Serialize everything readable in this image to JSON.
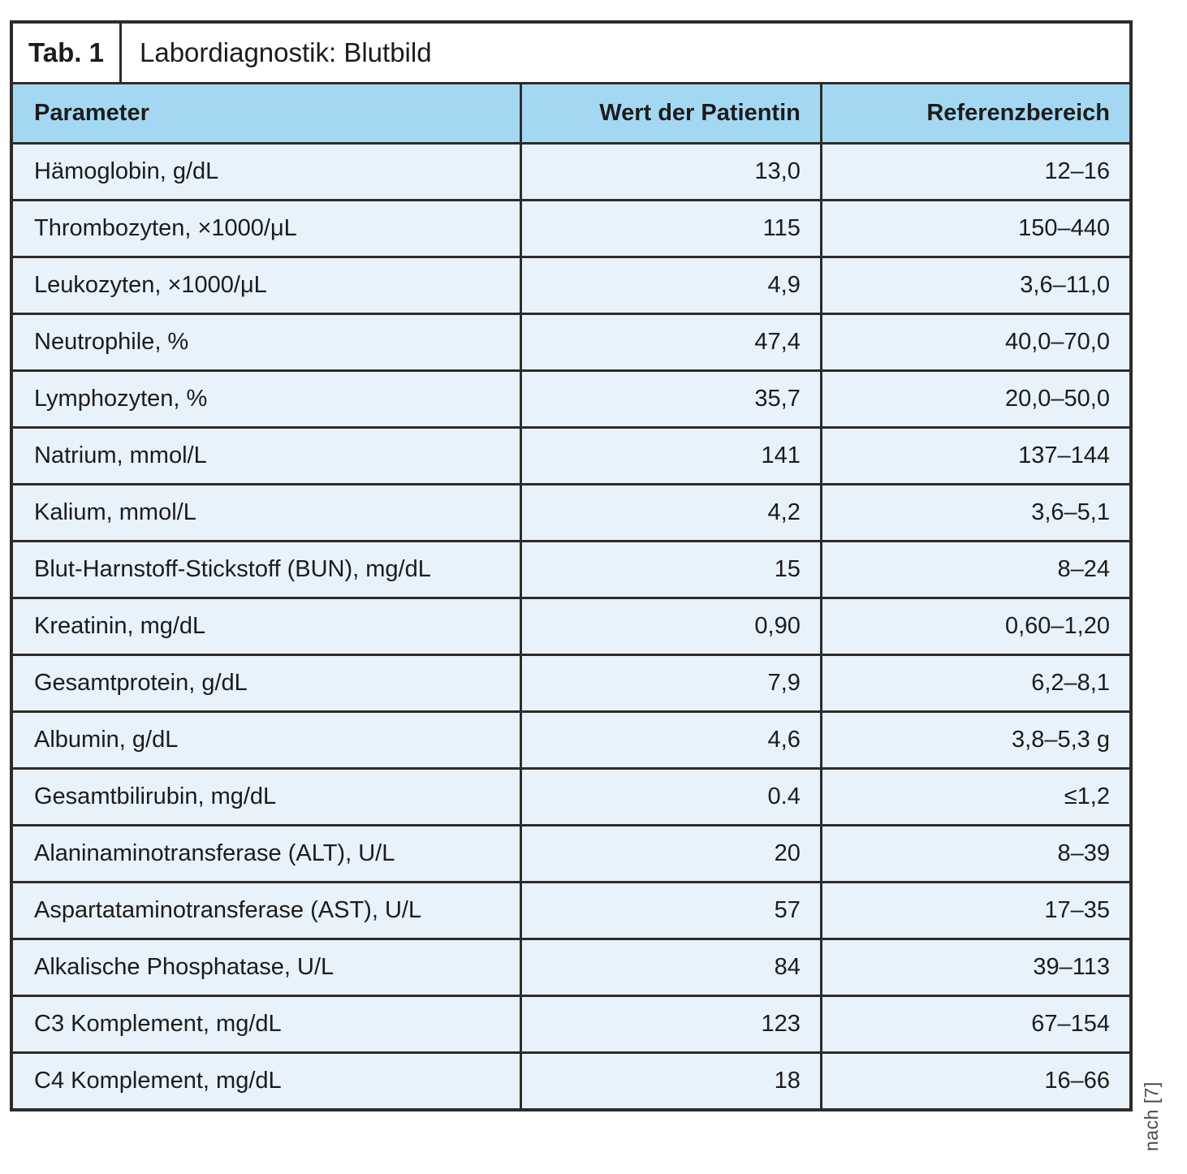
{
  "title": {
    "tag": "Tab. 1",
    "text": "Labordiagnostik: Blutbild"
  },
  "source_note": "nach [7]",
  "colors": {
    "header_bg": "#a4d8f2",
    "row_bg": "#e8f2fb",
    "border": "#2d2c2b",
    "text": "#1c1c1c",
    "note_text": "#4a4a4a"
  },
  "table": {
    "columns": [
      "Parameter",
      "Wert der Patientin",
      "Referenzbereich"
    ],
    "rows": [
      {
        "parameter": "Hämoglobin, g/dL",
        "value": "13,0",
        "reference": "12–16"
      },
      {
        "parameter": "Thrombozyten, ×1000/μL",
        "value": "115",
        "reference": "150–440"
      },
      {
        "parameter": "Leukozyten, ×1000/μL",
        "value": "4,9",
        "reference": "3,6–11,0"
      },
      {
        "parameter": "Neutrophile, %",
        "value": "47,4",
        "reference": "40,0–70,0"
      },
      {
        "parameter": "Lymphozyten, %",
        "value": "35,7",
        "reference": "20,0–50,0"
      },
      {
        "parameter": "Natrium, mmol/L",
        "value": "141",
        "reference": "137–144"
      },
      {
        "parameter": "Kalium, mmol/L",
        "value": "4,2",
        "reference": "3,6–5,1"
      },
      {
        "parameter": "Blut-Harnstoff-Stickstoff (BUN), mg/dL",
        "value": "15",
        "reference": "8–24"
      },
      {
        "parameter": "Kreatinin, mg/dL",
        "value": "0,90",
        "reference": "0,60–1,20"
      },
      {
        "parameter": "Gesamtprotein, g/dL",
        "value": "7,9",
        "reference": "6,2–8,1"
      },
      {
        "parameter": "Albumin, g/dL",
        "value": "4,6",
        "reference": "3,8–5,3 g"
      },
      {
        "parameter": "Gesamtbilirubin, mg/dL",
        "value": "0.4",
        "reference": "≤1,2"
      },
      {
        "parameter": "Alaninaminotransferase (ALT), U/L",
        "value": "20",
        "reference": "8–39"
      },
      {
        "parameter": "Aspartataminotransferase (AST), U/L",
        "value": "57",
        "reference": "17–35"
      },
      {
        "parameter": "Alkalische Phosphatase, U/L",
        "value": "84",
        "reference": "39–113"
      },
      {
        "parameter": "C3 Komplement, mg/dL",
        "value": "123",
        "reference": "67–154"
      },
      {
        "parameter": "C4 Komplement, mg/dL",
        "value": "18",
        "reference": "16–66"
      }
    ]
  }
}
